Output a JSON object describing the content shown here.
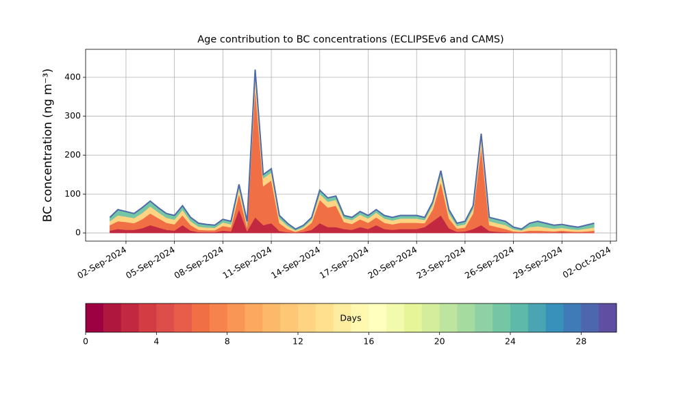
{
  "chart_data": {
    "type": "stacked_area",
    "title": "Age contribution to BC concentrations (ECLIPSEv6 and CAMS)",
    "ylabel": "BC concentration (ng m⁻³)",
    "x": [
      0,
      0.5,
      1,
      1.5,
      2,
      2.5,
      3,
      3.5,
      4,
      4.5,
      5,
      5.5,
      6,
      6.5,
      7,
      7.5,
      8,
      8.5,
      9,
      9.5,
      10,
      10.5,
      11,
      11.5,
      12,
      12.5,
      13,
      13.5,
      14,
      14.5,
      15,
      15.5,
      16,
      16.5,
      17,
      17.5,
      18,
      18.5,
      19,
      19.5,
      20,
      20.5,
      21,
      21.5,
      22,
      22.5,
      23,
      23.5,
      24,
      24.5,
      25,
      25.5,
      26,
      26.5,
      27,
      27.5,
      28,
      28.5,
      29,
      29.5,
      30
    ],
    "series": [
      {
        "color": "#c2283f",
        "values": [
          6,
          10,
          8,
          8,
          12,
          20,
          14,
          8,
          6,
          20,
          6,
          2,
          2,
          2,
          6,
          4,
          60,
          4,
          40,
          20,
          25,
          5,
          2,
          1,
          3,
          8,
          25,
          15,
          15,
          10,
          8,
          15,
          10,
          20,
          10,
          8,
          10,
          10,
          10,
          15,
          30,
          45,
          12,
          3,
          4,
          10,
          20,
          5,
          3,
          2,
          1,
          1,
          1,
          1,
          1,
          1,
          2,
          1,
          1,
          1,
          1
        ]
      },
      {
        "color": "#f06f45",
        "values": [
          14,
          20,
          20,
          17,
          23,
          30,
          24,
          18,
          16,
          25,
          14,
          6,
          5,
          5,
          12,
          10,
          40,
          10,
          330,
          100,
          110,
          20,
          8,
          2,
          7,
          18,
          60,
          50,
          55,
          18,
          15,
          20,
          16,
          20,
          16,
          14,
          16,
          16,
          16,
          10,
          30,
          85,
          25,
          8,
          10,
          40,
          200,
          15,
          12,
          8,
          3,
          2,
          5,
          5,
          4,
          3,
          4,
          3,
          2,
          3,
          5
        ]
      },
      {
        "color": "#fed483",
        "values": [
          10,
          15,
          14,
          13,
          16,
          18,
          15,
          13,
          12,
          14,
          10,
          8,
          7,
          6,
          9,
          8,
          15,
          8,
          35,
          20,
          20,
          12,
          8,
          3,
          5,
          8,
          15,
          15,
          15,
          10,
          10,
          12,
          11,
          12,
          11,
          10,
          11,
          11,
          11,
          8,
          12,
          20,
          13,
          7,
          8,
          12,
          25,
          10,
          10,
          10,
          5,
          3,
          9,
          11,
          9,
          7,
          7,
          6,
          5,
          7,
          8
        ]
      },
      {
        "color": "#75c6a5",
        "values": [
          10,
          15,
          13,
          12,
          14,
          14,
          12,
          11,
          11,
          11,
          10,
          9,
          8,
          7,
          8,
          8,
          10,
          8,
          15,
          10,
          10,
          8,
          7,
          4,
          5,
          6,
          10,
          10,
          10,
          7,
          7,
          8,
          8,
          8,
          8,
          8,
          8,
          8,
          8,
          7,
          8,
          10,
          10,
          7,
          8,
          8,
          10,
          10,
          10,
          10,
          6,
          4,
          10,
          13,
          11,
          9,
          9,
          8,
          7,
          9,
          11
        ]
      }
    ],
    "outline_color": "#4f6aa8",
    "xlim": [
      -1.5,
      31.38
    ],
    "xticks": [
      {
        "value": 1,
        "label": "02-Sep-2024"
      },
      {
        "value": 4,
        "label": "05-Sep-2024"
      },
      {
        "value": 7,
        "label": "08-Sep-2024"
      },
      {
        "value": 10,
        "label": "11-Sep-2024"
      },
      {
        "value": 13,
        "label": "14-Sep-2024"
      },
      {
        "value": 16,
        "label": "17-Sep-2024"
      },
      {
        "value": 19,
        "label": "20-Sep-2024"
      },
      {
        "value": 22,
        "label": "23-Sep-2024"
      },
      {
        "value": 25,
        "label": "26-Sep-2024"
      },
      {
        "value": 28,
        "label": "29-Sep-2024"
      },
      {
        "value": 31,
        "label": "02-Oct-2024"
      }
    ],
    "ylim": [
      -21,
      472
    ],
    "yticks": [
      0,
      100,
      200,
      300,
      400
    ],
    "grid": true,
    "colorbar": {
      "label": "Days",
      "lim": [
        0,
        30
      ],
      "ticks": [
        0,
        4,
        8,
        12,
        16,
        20,
        24,
        28
      ],
      "colors": [
        "#9e0142",
        "#b0173f",
        "#c2283f",
        "#d33c42",
        "#dd4d4a",
        "#e75d4a",
        "#f06f45",
        "#f6834e",
        "#f99555",
        "#fca85e",
        "#fdb96a",
        "#fdc776",
        "#fed483",
        "#fee08f",
        "#feec9f",
        "#fff8b0",
        "#ffffbe",
        "#f2faae",
        "#e6f598",
        "#d3ed9c",
        "#bee5a0",
        "#a6db9f",
        "#8fd1a4",
        "#75c6a5",
        "#5fb9a8",
        "#4ba4b1",
        "#3891bb",
        "#3f7bb7",
        "#4d66ad",
        "#5e4fa2"
      ]
    }
  }
}
